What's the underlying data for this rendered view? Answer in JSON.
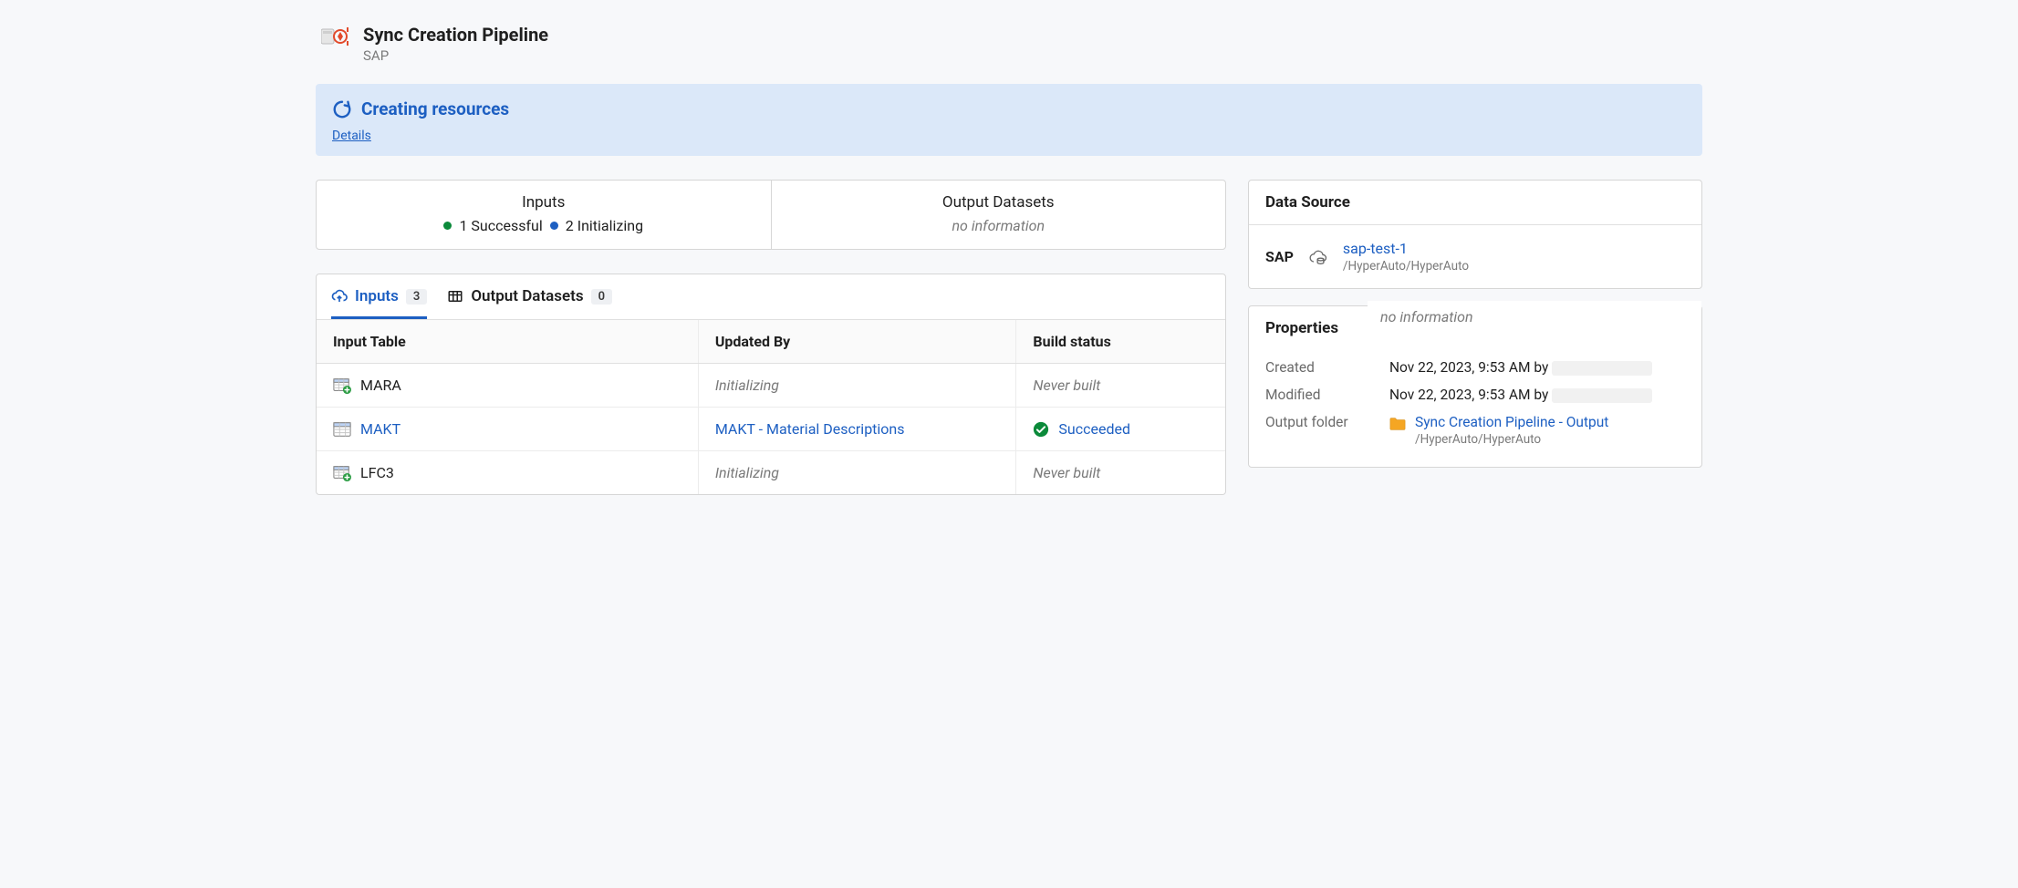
{
  "header": {
    "title": "Sync Creation Pipeline",
    "subtitle": "SAP"
  },
  "banner": {
    "title": "Creating resources",
    "details_label": "Details"
  },
  "summary": {
    "inputs": {
      "title": "Inputs",
      "successful_count": "1",
      "successful_label": "Successful",
      "initializing_count": "2",
      "initializing_label": "Initializing"
    },
    "outputs": {
      "title": "Output Datasets",
      "text": "no information"
    }
  },
  "tabs": {
    "inputs_label": "Inputs",
    "inputs_count": "3",
    "outputs_label": "Output Datasets",
    "outputs_count": "0"
  },
  "table": {
    "columns": {
      "input_table": "Input Table",
      "updated_by": "Updated By",
      "build_status": "Build status"
    },
    "rows": [
      {
        "name": "MARA",
        "name_style": "plain",
        "icon": "table-plus",
        "updated_by": "Initializing",
        "updated_by_style": "muted",
        "status_text": "Never built",
        "status_style": "muted",
        "status_icon": "none"
      },
      {
        "name": "MAKT",
        "name_style": "link",
        "icon": "table",
        "updated_by": "MAKT - Material Descriptions",
        "updated_by_style": "link",
        "status_text": "Succeeded",
        "status_style": "success",
        "status_icon": "check"
      },
      {
        "name": "LFC3",
        "name_style": "plain",
        "icon": "table-plus",
        "updated_by": "Initializing",
        "updated_by_style": "muted",
        "status_text": "Never built",
        "status_style": "muted",
        "status_icon": "none"
      }
    ]
  },
  "datasource": {
    "heading": "Data Source",
    "system": "SAP",
    "link": "sap-test-1",
    "path": "/HyperAuto/HyperAuto"
  },
  "properties": {
    "heading": "Properties",
    "overlay": "no information",
    "created_label": "Created",
    "created_value": "Nov 22, 2023, 9:53 AM by",
    "modified_label": "Modified",
    "modified_value": "Nov 22, 2023, 9:53 AM by",
    "output_folder_label": "Output folder",
    "output_folder_link": "Sync Creation Pipeline - Output",
    "output_folder_path": "/HyperAuto/HyperAuto"
  },
  "colors": {
    "accent": "#1d5fc2",
    "banner_bg": "#dbe8f9",
    "success": "#0b8a3a",
    "muted": "#7a7a7a",
    "border": "#d6d6d6",
    "folder": "#f5a623"
  }
}
